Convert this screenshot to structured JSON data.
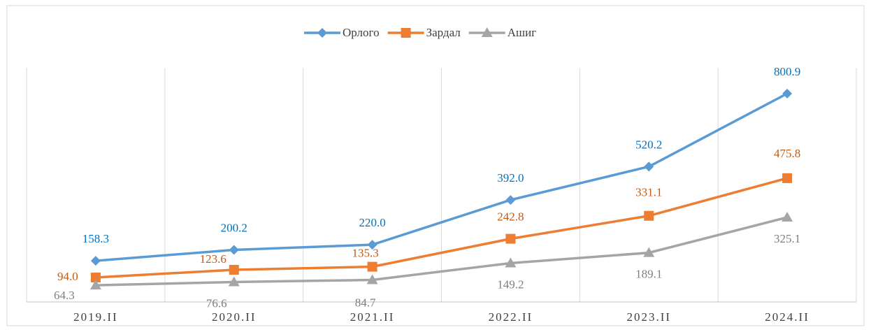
{
  "chart_data": {
    "type": "line",
    "categories": [
      "2019.II",
      "2020.II",
      "2021.II",
      "2022.II",
      "2023.II",
      "2024.II"
    ],
    "series": [
      {
        "name": "Орлого",
        "color": "#5b9bd5",
        "label_color": "#0070c0",
        "marker": "diamond",
        "values": [
          158.3,
          200.2,
          220.0,
          392.0,
          520.2,
          800.9
        ],
        "value_labels": [
          "158.3",
          "200.2",
          "220.0",
          "392.0",
          "520.2",
          "800.9"
        ]
      },
      {
        "name": "Зардал",
        "color": "#ed7d31",
        "label_color": "#c55a11",
        "marker": "square",
        "values": [
          94.0,
          123.6,
          135.3,
          242.8,
          331.1,
          475.8
        ],
        "value_labels": [
          "94.0",
          "123.6",
          "135.3",
          "242.8",
          "331.1",
          "475.8"
        ]
      },
      {
        "name": "Ашиг",
        "color": "#a5a5a5",
        "label_color": "#7f7f7f",
        "marker": "triangle",
        "values": [
          64.3,
          76.6,
          84.7,
          149.2,
          189.1,
          325.1
        ],
        "value_labels": [
          "64.3",
          "76.6",
          "84.7",
          "149.2",
          "189.1",
          "325.1"
        ]
      }
    ],
    "ylim": [
      0,
      900
    ],
    "legend": "top",
    "grid": "vertical"
  }
}
